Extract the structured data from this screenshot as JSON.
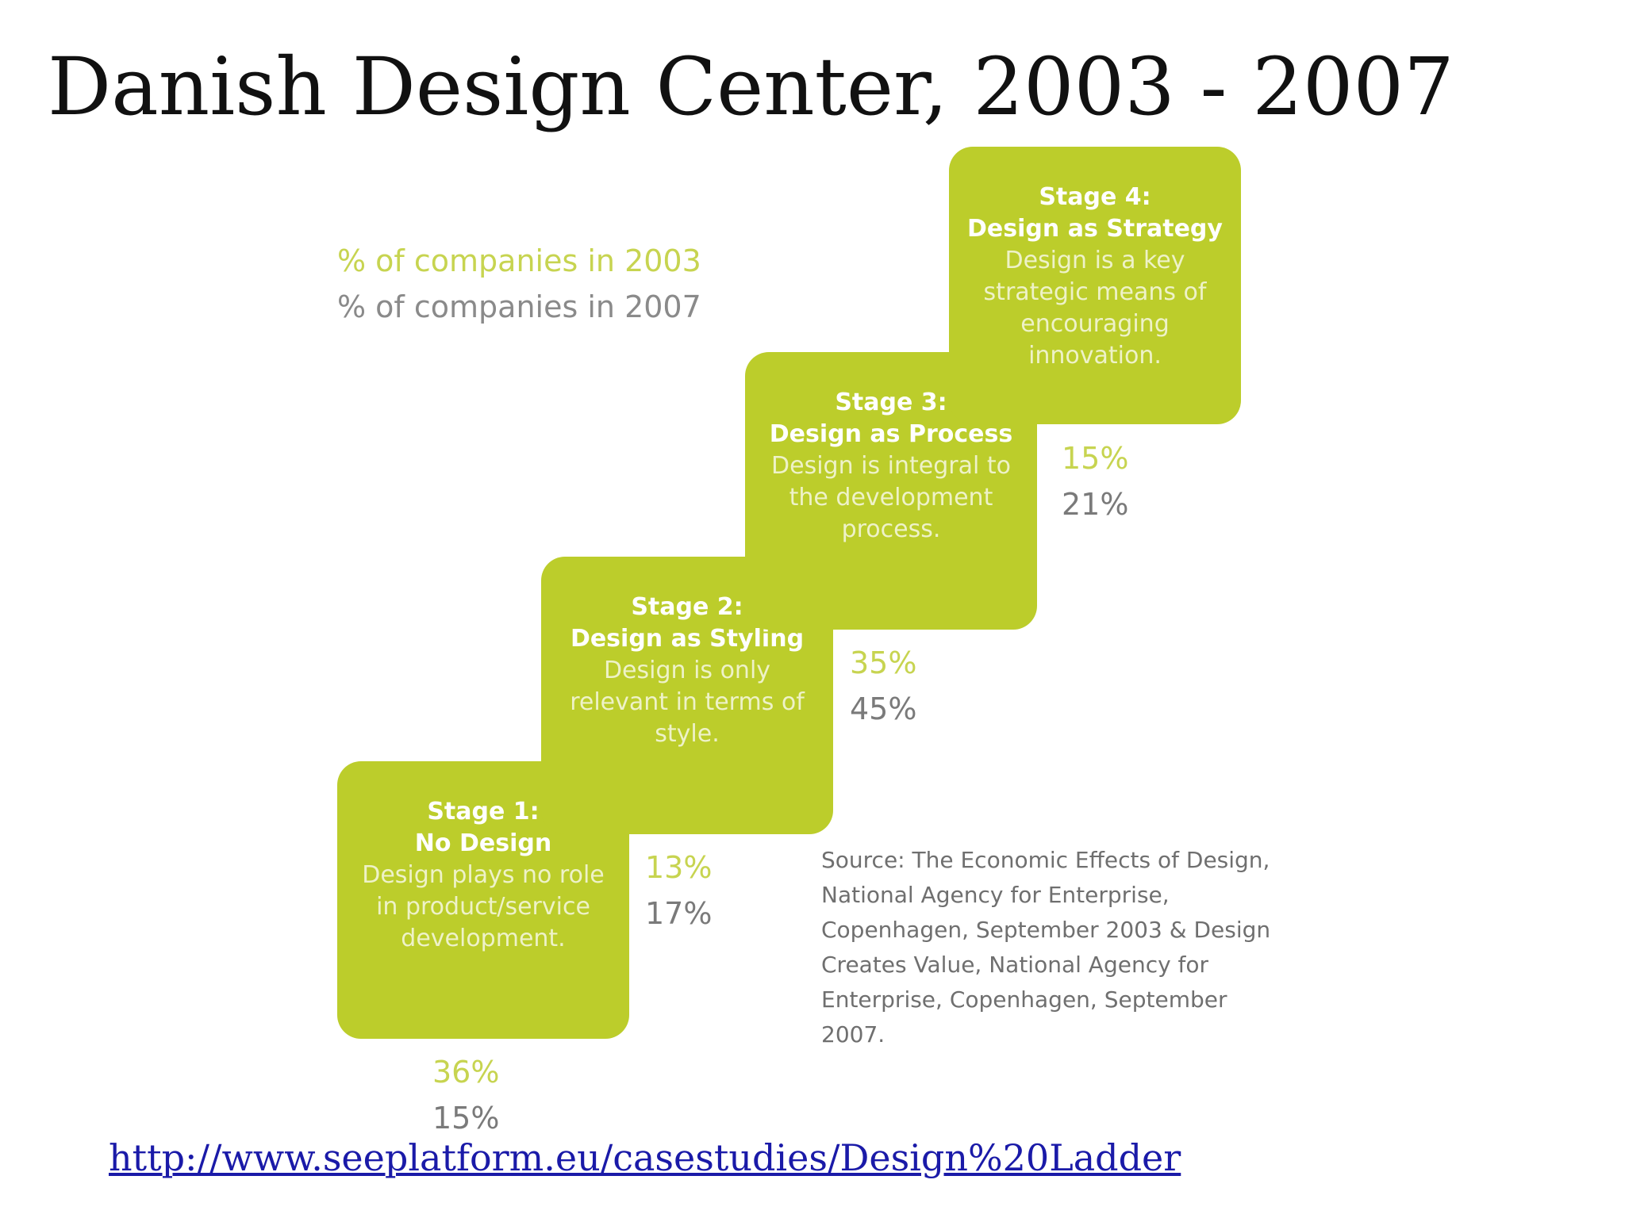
{
  "title": "Danish Design Center, 2003 - 2007",
  "legend": {
    "label_2003": "% of companies in 2003",
    "label_2007": "% of companies in 2007"
  },
  "stages": [
    {
      "label": "Stage 1:",
      "name": "No Design",
      "description": "Design plays no role in product/service development.",
      "pct_2003": "36%",
      "pct_2007": "15%"
    },
    {
      "label": "Stage 2:",
      "name": "Design as Styling",
      "description": "Design is only relevant in terms of style.",
      "pct_2003": "13%",
      "pct_2007": "17%"
    },
    {
      "label": "Stage 3:",
      "name": "Design as Process",
      "description": "Design is integral to the development process.",
      "pct_2003": "35%",
      "pct_2007": "45%"
    },
    {
      "label": "Stage 4:",
      "name": "Design as Strategy",
      "description": "Design is a key strategic means of encouraging innovation.",
      "pct_2003": "15%",
      "pct_2007": "21%"
    }
  ],
  "source": "Source: The Economic Effects of Design, National Agency for Enterprise, Copenhagen, September 2003 & Design Creates Value, National Agency for Enterprise, Copenhagen, September 2007.",
  "link": "http://www.seeplatform.eu/casestudies/Design%20Ladder",
  "colors": {
    "stage_fill": "#bccd2b",
    "pct_2003": "#c7d450",
    "pct_2007": "#7a7a7a",
    "link": "#1a1aa8"
  }
}
